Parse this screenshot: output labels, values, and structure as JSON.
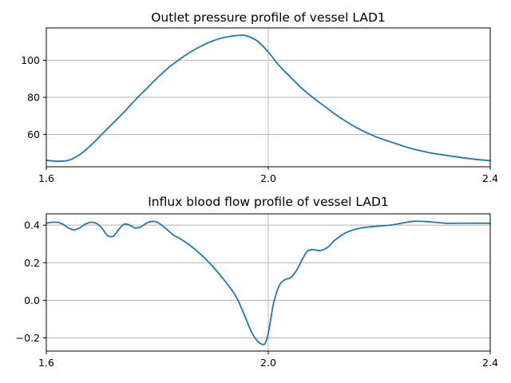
{
  "chart_data": [
    {
      "type": "line",
      "title": "Outlet pressure profile of vessel LAD1",
      "xlabel": "",
      "ylabel": "",
      "xlim": [
        1.6,
        2.4
      ],
      "ylim": [
        42.5,
        117.5
      ],
      "xticks": [
        1.6,
        2.0,
        2.4
      ],
      "xtick_labels": [
        "1.6",
        "2.0",
        "2.4"
      ],
      "yticks": [
        60,
        80,
        100
      ],
      "ytick_labels": [
        "60",
        "80",
        "100"
      ],
      "grid": true,
      "color": "#1f77b4",
      "series": [
        {
          "x": [
            1.6,
            1.62,
            1.64,
            1.66,
            1.68,
            1.7,
            1.72,
            1.74,
            1.76,
            1.78,
            1.8,
            1.82,
            1.84,
            1.86,
            1.88,
            1.9,
            1.92,
            1.94,
            1.95,
            1.96,
            1.98,
            2.0,
            2.02,
            2.04,
            2.06,
            2.08,
            2.1,
            2.12,
            2.14,
            2.16,
            2.18,
            2.2,
            2.22,
            2.24,
            2.26,
            2.28,
            2.3,
            2.32,
            2.34,
            2.36,
            2.38,
            2.4
          ],
          "y": [
            46,
            45.5,
            46,
            49,
            54,
            60,
            66,
            72,
            78.5,
            84.5,
            90.5,
            96,
            100.5,
            104.5,
            107.8,
            110.5,
            112.3,
            113.3,
            113.5,
            113.3,
            110.5,
            104.5,
            97,
            91,
            85,
            80,
            75.5,
            71,
            67,
            63.5,
            60.5,
            58,
            56,
            54,
            52.2,
            50.8,
            49.6,
            48.7,
            47.8,
            47,
            46.3,
            45.8
          ]
        }
      ]
    },
    {
      "type": "line",
      "title": "Influx blood flow profile of vessel LAD1",
      "xlabel": "",
      "ylabel": "",
      "xlim": [
        1.6,
        2.4
      ],
      "ylim": [
        -0.27,
        0.46
      ],
      "xticks": [
        1.6,
        2.0,
        2.4
      ],
      "xtick_labels": [
        "1.6",
        "2.0",
        "2.4"
      ],
      "yticks": [
        -0.2,
        0.0,
        0.2,
        0.4
      ],
      "ytick_labels": [
        "−0.2",
        "0.0",
        "0.2",
        "0.4"
      ],
      "grid": true,
      "color": "#1f77b4",
      "series": [
        {
          "x": [
            1.6,
            1.61,
            1.62,
            1.63,
            1.64,
            1.65,
            1.66,
            1.67,
            1.68,
            1.69,
            1.7,
            1.71,
            1.72,
            1.725,
            1.73,
            1.74,
            1.75,
            1.76,
            1.77,
            1.78,
            1.79,
            1.8,
            1.81,
            1.82,
            1.83,
            1.84,
            1.86,
            1.88,
            1.9,
            1.92,
            1.94,
            1.95,
            1.96,
            1.97,
            1.98,
            1.99,
            1.995,
            2.0,
            2.005,
            2.01,
            2.02,
            2.03,
            2.04,
            2.05,
            2.06,
            2.07,
            2.08,
            2.09,
            2.1,
            2.11,
            2.12,
            2.14,
            2.16,
            2.18,
            2.2,
            2.22,
            2.24,
            2.26,
            2.28,
            2.3,
            2.32,
            2.34,
            2.36,
            2.38,
            2.4
          ],
          "y": [
            0.41,
            0.415,
            0.415,
            0.405,
            0.385,
            0.375,
            0.385,
            0.405,
            0.415,
            0.41,
            0.385,
            0.345,
            0.34,
            0.355,
            0.375,
            0.405,
            0.4,
            0.385,
            0.39,
            0.41,
            0.42,
            0.415,
            0.395,
            0.37,
            0.345,
            0.33,
            0.29,
            0.24,
            0.18,
            0.11,
            0.03,
            -0.03,
            -0.1,
            -0.17,
            -0.215,
            -0.235,
            -0.225,
            -0.175,
            -0.09,
            -0.01,
            0.08,
            0.11,
            0.12,
            0.155,
            0.21,
            0.26,
            0.27,
            0.265,
            0.27,
            0.29,
            0.32,
            0.36,
            0.38,
            0.39,
            0.395,
            0.4,
            0.41,
            0.42,
            0.42,
            0.415,
            0.41,
            0.41,
            0.41,
            0.41,
            0.41
          ]
        }
      ]
    }
  ]
}
